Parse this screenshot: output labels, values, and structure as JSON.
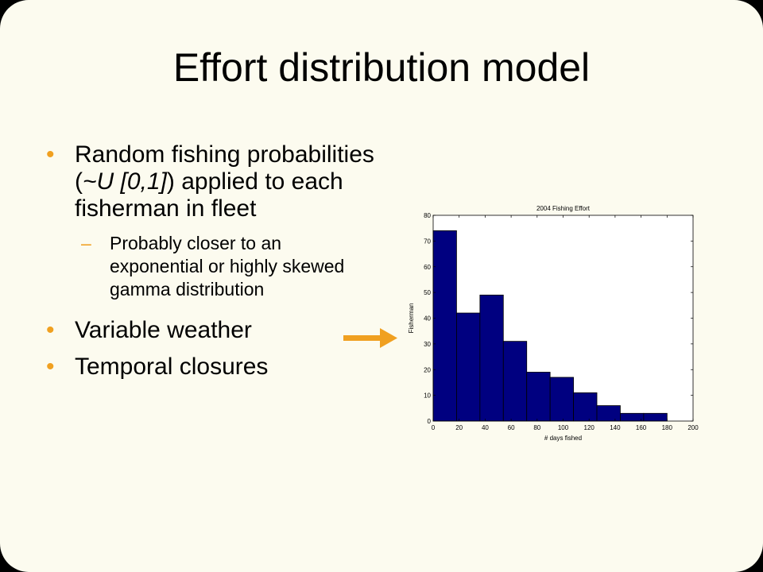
{
  "slide": {
    "title": "Effort distribution model",
    "bullets": [
      {
        "pre": "Random fishing probabilities (",
        "italic": "~U [0,1]",
        "post": ") applied to each fisherman in fleet"
      },
      {
        "sub": "Probably closer to an exponential or highly skewed gamma distribution"
      },
      {
        "text": "Variable weather"
      },
      {
        "text": "Temporal closures"
      }
    ],
    "bullet_glyph": "•",
    "dash_glyph": "–",
    "colors": {
      "accent": "#f0a020",
      "background": "#fcfbef",
      "bar": "#000080"
    },
    "arrow_icon": "right-arrow-icon"
  },
  "chart_data": {
    "type": "bar",
    "title": "2004 Fishing Effort",
    "xlabel": "# days fished",
    "ylabel": "Fisherman",
    "xlim": [
      0,
      200
    ],
    "ylim": [
      0,
      80
    ],
    "xticks": [
      0,
      20,
      40,
      60,
      80,
      100,
      120,
      140,
      160,
      180,
      200
    ],
    "yticks": [
      0,
      10,
      20,
      30,
      40,
      50,
      60,
      70,
      80
    ],
    "bin_edges": [
      0,
      18,
      36,
      54,
      72,
      90,
      108,
      126,
      144,
      162,
      180
    ],
    "values": [
      74,
      42,
      49,
      31,
      19,
      17,
      11,
      6,
      3,
      3
    ],
    "grid": false
  }
}
